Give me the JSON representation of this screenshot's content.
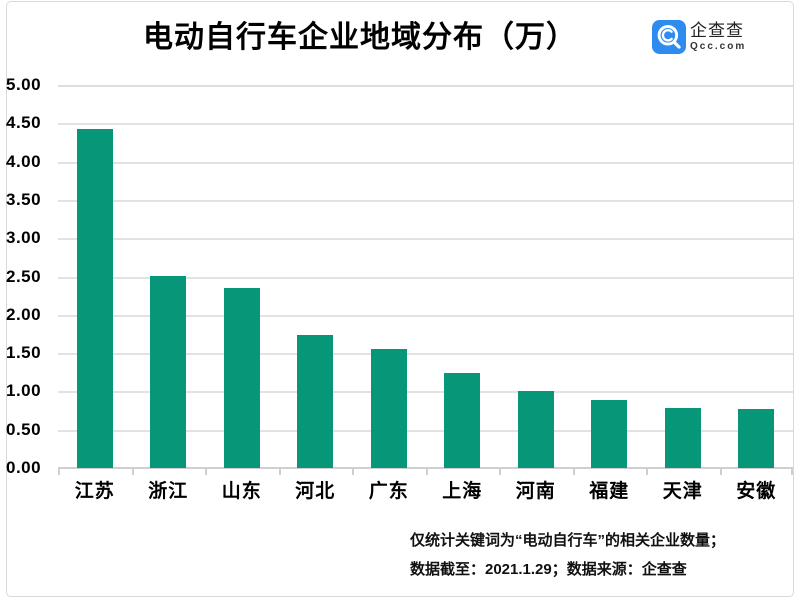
{
  "title": "电动自行车企业地域分布（万）",
  "logo": {
    "name": "企查查",
    "domain": "Qcc.com",
    "brand_color": "#2E8CF0"
  },
  "chart_data": {
    "type": "bar",
    "title": "电动自行车企业地域分布（万）",
    "categories": [
      "江苏",
      "浙江",
      "山东",
      "河北",
      "广东",
      "上海",
      "河南",
      "福建",
      "天津",
      "安徽"
    ],
    "values": [
      4.42,
      2.51,
      2.35,
      1.73,
      1.56,
      1.24,
      1.0,
      0.89,
      0.78,
      0.77
    ],
    "xlabel": "",
    "ylabel": "",
    "ylim": [
      0,
      5
    ],
    "ytick_step": 0.5,
    "grid": true,
    "legend": "none",
    "bar_color": "#079678",
    "gridline_color": "#e2e2e2"
  },
  "footer": {
    "line1": "仅统计关键词为“电动自行车”的相关企业数量；",
    "line2": "数据截至：2021.1.29；数据来源：企查查"
  }
}
